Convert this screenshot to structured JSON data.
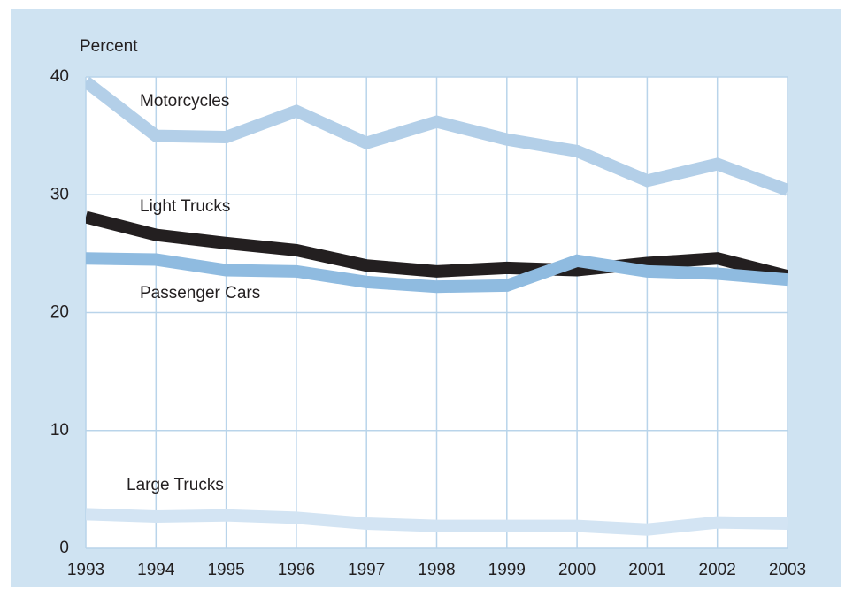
{
  "chart_data": {
    "type": "line",
    "ylabel": "Percent",
    "x": [
      1993,
      1994,
      1995,
      1996,
      1997,
      1998,
      1999,
      2000,
      2001,
      2002,
      2003
    ],
    "xlim": [
      1993,
      2003
    ],
    "xticks": [
      1993,
      1994,
      1995,
      1996,
      1997,
      1998,
      1999,
      2000,
      2001,
      2002,
      2003
    ],
    "ylim": [
      0,
      40
    ],
    "yticks": [
      0,
      10,
      20,
      30,
      40
    ],
    "grid": true,
    "series": [
      {
        "name": "Motorcycles",
        "color": "#b3cfe8",
        "values": [
          39.6,
          35.0,
          34.9,
          37.1,
          34.4,
          36.2,
          34.7,
          33.7,
          31.2,
          32.6,
          30.4
        ]
      },
      {
        "name": "Light Trucks",
        "color": "#231f20",
        "values": [
          28.1,
          26.6,
          25.9,
          25.3,
          24.0,
          23.5,
          23.8,
          23.6,
          24.2,
          24.6,
          23.1
        ]
      },
      {
        "name": "Passenger Cars",
        "color": "#8fbbe0",
        "values": [
          24.6,
          24.5,
          23.6,
          23.5,
          22.6,
          22.2,
          22.3,
          24.4,
          23.5,
          23.3,
          22.8
        ]
      },
      {
        "name": "Large Trucks",
        "color": "#d3e4f3",
        "values": [
          2.9,
          2.7,
          2.8,
          2.6,
          2.1,
          1.9,
          1.9,
          1.9,
          1.6,
          2.2,
          2.1
        ]
      }
    ]
  }
}
